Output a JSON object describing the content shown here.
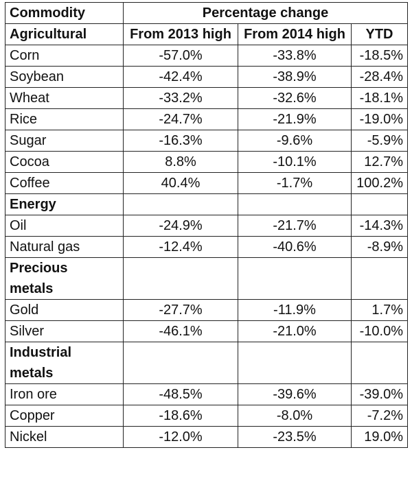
{
  "header": {
    "commodity": "Commodity",
    "pct_change": "Percentage change",
    "col_2013": "From 2013 high",
    "col_2014": "From 2014 high",
    "col_ytd": "YTD",
    "agricultural": "Agricultural"
  },
  "agricultural_rows": [
    {
      "name": "Corn",
      "from2013": "-57.0%",
      "from2014": "-33.8%",
      "ytd": "-18.5%"
    },
    {
      "name": "Soybean",
      "from2013": "-42.4%",
      "from2014": "-38.9%",
      "ytd": "-28.4%"
    },
    {
      "name": "Wheat",
      "from2013": "-33.2%",
      "from2014": "-32.6%",
      "ytd": "-18.1%"
    },
    {
      "name": "Rice",
      "from2013": "-24.7%",
      "from2014": "-21.9%",
      "ytd": "-19.0%"
    },
    {
      "name": "Sugar",
      "from2013": "-16.3%",
      "from2014": "-9.6%",
      "ytd": "-5.9%"
    },
    {
      "name": "Cocoa",
      "from2013": "8.8%",
      "from2014": "-10.1%",
      "ytd": "12.7%"
    },
    {
      "name": "Coffee",
      "from2013": "40.4%",
      "from2014": "-1.7%",
      "ytd": "100.2%"
    }
  ],
  "energy": {
    "label": "Energy",
    "rows": [
      {
        "name": "Oil",
        "from2013": "-24.9%",
        "from2014": "-21.7%",
        "ytd": "-14.3%"
      },
      {
        "name": "Natural gas",
        "from2013": "-12.4%",
        "from2014": "-40.6%",
        "ytd": "-8.9%"
      }
    ]
  },
  "precious": {
    "label_line1": "Precious",
    "label_line2": "metals",
    "rows": [
      {
        "name": "Gold",
        "from2013": "-27.7%",
        "from2014": "-11.9%",
        "ytd": "1.7%"
      },
      {
        "name": "Silver",
        "from2013": "-46.1%",
        "from2014": "-21.0%",
        "ytd": "-10.0%"
      }
    ]
  },
  "industrial": {
    "label_line1": "Industrial",
    "label_line2": "metals",
    "rows": [
      {
        "name": "Iron ore",
        "from2013": "-48.5%",
        "from2014": "-39.6%",
        "ytd": "-39.0%"
      },
      {
        "name": "Copper",
        "from2013": "-18.6%",
        "from2014": "-8.0%",
        "ytd": "-7.2%"
      },
      {
        "name": "Nickel",
        "from2013": "-12.0%",
        "from2014": "-23.5%",
        "ytd": "19.0%"
      }
    ]
  }
}
